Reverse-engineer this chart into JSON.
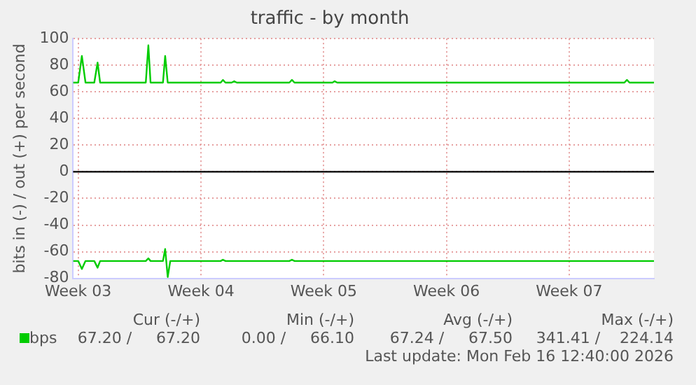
{
  "chart_data": {
    "type": "line",
    "title": "traffic - by month",
    "ylabel": "bits in (-) / out (+) per second",
    "xlim": [
      "2026-01-15T05:00",
      "2026-02-17T08:00"
    ],
    "xticks": [
      {
        "value": "2026-01-15T12:00",
        "label": "Week 03"
      },
      {
        "value": "2026-01-22T12:00",
        "label": "Week 04"
      },
      {
        "value": "2026-01-29T12:00",
        "label": "Week 05"
      },
      {
        "value": "2026-02-05T12:00",
        "label": "Week 06"
      },
      {
        "value": "2026-02-12T12:00",
        "label": "Week 07"
      }
    ],
    "ylim": [
      -80,
      100
    ],
    "yticks": [
      -80,
      -60,
      -40,
      -20,
      0,
      20,
      40,
      60,
      80,
      100
    ],
    "grid": true,
    "legend": "bottom left",
    "marker": "none",
    "line_style": "solid",
    "ref_lines": [
      {
        "axis": "y",
        "value": 0,
        "color": "#000000"
      }
    ],
    "series": [
      {
        "name": "bps",
        "color": "#00cc00",
        "x": [
          "2026-01-15T05:00",
          "2026-01-15T12:00",
          "2026-01-15T17:00",
          "2026-01-15T22:00",
          "2026-01-16T10:00",
          "2026-01-16T14:30",
          "2026-01-16T18:00",
          "2026-01-19T08:30",
          "2026-01-19T12:00",
          "2026-01-19T15:00",
          "2026-01-20T08:00",
          "2026-01-20T11:00",
          "2026-01-20T14:30",
          "2026-01-23T15:00",
          "2026-01-23T18:00",
          "2026-01-23T21:30",
          "2026-01-24T06:00",
          "2026-01-24T09:30",
          "2026-01-24T13:00",
          "2026-01-27T13:00",
          "2026-01-27T16:30",
          "2026-01-27T20:00",
          "2026-01-30T00:00",
          "2026-01-30T03:00",
          "2026-01-30T06:30",
          "2026-02-15T15:30",
          "2026-02-15T19:00",
          "2026-02-15T22:30",
          "2026-02-17T08:00"
        ],
        "values": [
          67,
          67,
          87,
          67,
          67,
          82,
          67,
          67,
          95,
          67,
          67,
          87,
          67,
          67,
          69,
          67,
          67,
          68,
          67,
          67,
          69,
          67,
          67,
          68,
          67,
          67,
          69,
          67,
          67
        ]
      },
      {
        "color": "#00cc00",
        "x": [
          "2026-01-15T05:00",
          "2026-01-15T12:00",
          "2026-01-15T17:00",
          "2026-01-15T22:00",
          "2026-01-16T10:00",
          "2026-01-16T14:30",
          "2026-01-16T18:00",
          "2026-01-19T08:30",
          "2026-01-19T12:00",
          "2026-01-19T15:00",
          "2026-01-20T08:00",
          "2026-01-20T11:00",
          "2026-01-20T14:30",
          "2026-01-20T18:00",
          "2026-01-23T15:00",
          "2026-01-23T18:00",
          "2026-01-23T21:30",
          "2026-01-27T13:00",
          "2026-01-27T16:30",
          "2026-01-27T20:00",
          "2026-02-17T08:00"
        ],
        "values": [
          -67,
          -67,
          -73,
          -67,
          -67,
          -72,
          -67,
          -67,
          -65,
          -67,
          -67,
          -58,
          -79,
          -67,
          -67,
          -66,
          -67,
          -67,
          -66,
          -67,
          -67
        ]
      }
    ],
    "annotations": [
      "Cur (-/+)",
      "Min (-/+)",
      "Avg (-/+)",
      "Max (-/+)",
      "67.20 /     67.20",
      "0.00 /     66.10",
      "67.24 /     67.50",
      "341.41 /    224.14",
      "Last update: Mon Feb 16 12:40:00 2026"
    ]
  }
}
